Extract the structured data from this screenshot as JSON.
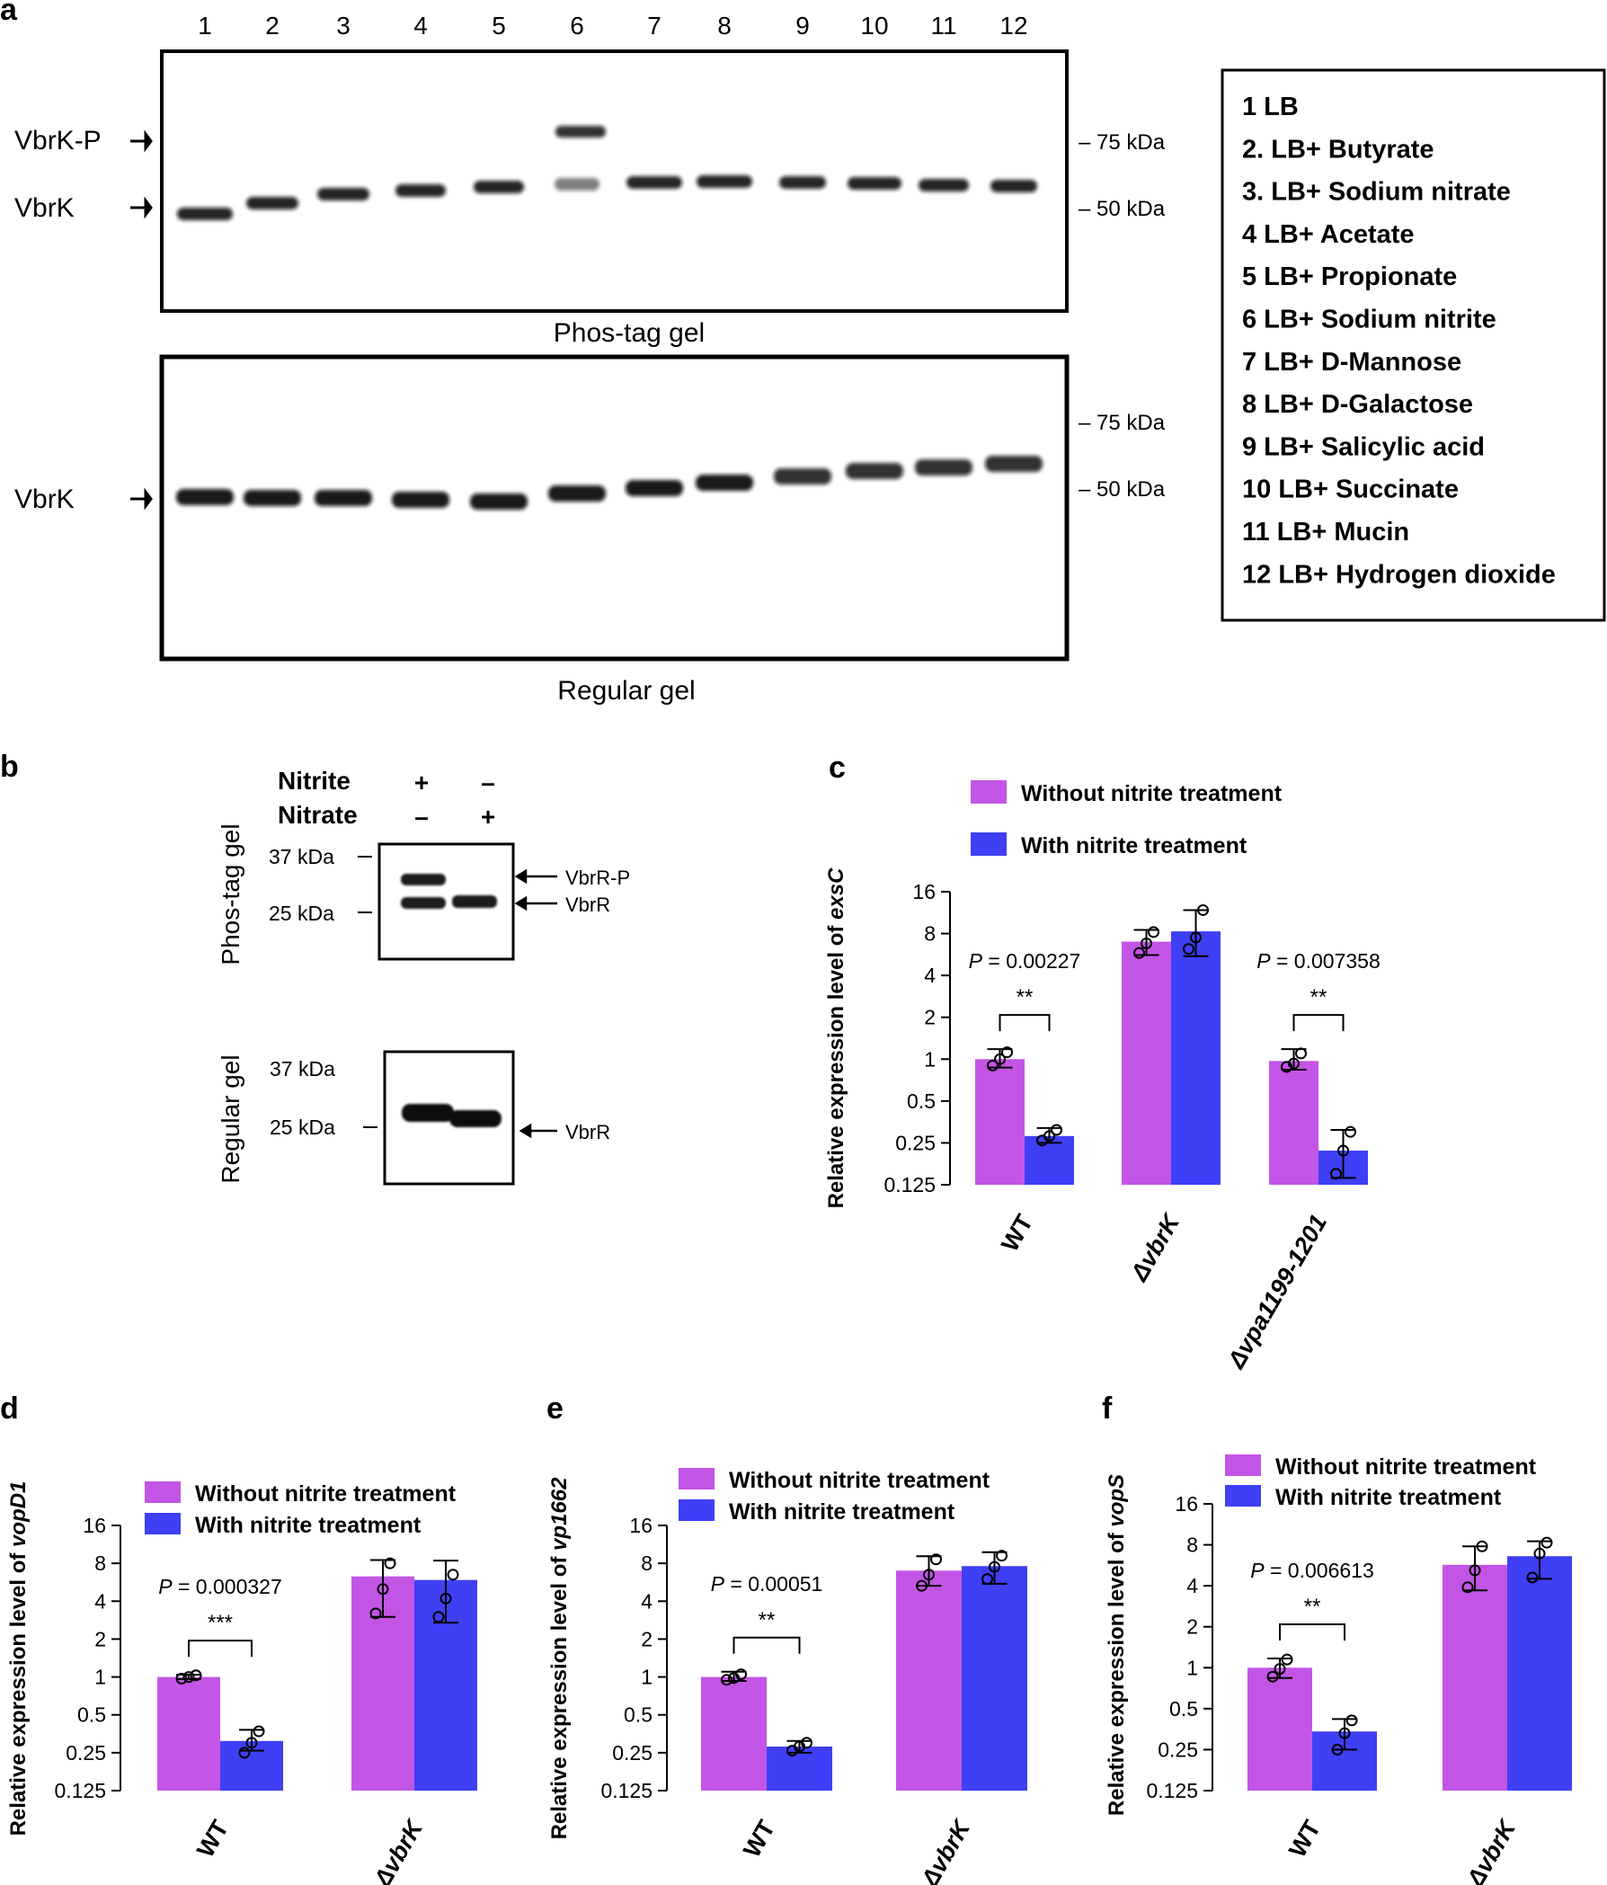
{
  "panel_labels": {
    "a": "a",
    "b": "b",
    "c": "c",
    "d": "d",
    "e": "e",
    "f": "f"
  },
  "panel_a": {
    "lanes": [
      "1",
      "2",
      "3",
      "4",
      "5",
      "6",
      "7",
      "8",
      "9",
      "10",
      "11",
      "12"
    ],
    "phos_label": "Phos-tag gel",
    "regular_label": "Regular gel",
    "left_labels": {
      "vbrk_p": "VbrK-P",
      "vbrk": "VbrK",
      "vbrk_regular": "VbrK"
    },
    "markers": {
      "kda75": "– 75 kDa",
      "kda50": "– 50 kDa"
    },
    "legend": [
      "1  LB",
      "2. LB+ Butyrate",
      "3. LB+ Sodium nitrate",
      "4  LB+ Acetate",
      "5  LB+ Propionate",
      "6  LB+ Sodium nitrite",
      "7  LB+ D-Mannose",
      "8  LB+ D-Galactose",
      "9  LB+ Salicylic acid",
      "10 LB+ Succinate",
      "11 LB+ Mucin",
      "12 LB+ Hydrogen dioxide"
    ]
  },
  "panel_b": {
    "nitrite_label": "Nitrite",
    "nitrate_label": "Nitrate",
    "nitrite_signs": [
      "+",
      "–"
    ],
    "nitrate_signs": [
      "–",
      "+"
    ],
    "phos_label": "Phos-tag gel",
    "regular_label": "Regular gel",
    "kda37": "37 kDa",
    "kda25": "25 kDa",
    "vbrr_p": "VbrR-P",
    "vbrr": "VbrR",
    "vbrr_regular": "VbrR"
  },
  "legend_text": {
    "without": "Without nitrite treatment",
    "with": "With nitrite treatment"
  },
  "colors": {
    "without": "#c355e6",
    "with": "#3f3ff5"
  },
  "chart_data": [
    {
      "id": "c",
      "type": "bar",
      "ylabel_prefix": "Relative expression level of ",
      "ylabel_gene": "exsC",
      "categories": [
        "WT",
        "ΔvbrK",
        "Δvpa1199-1201"
      ],
      "series": [
        {
          "name": "Without nitrite treatment",
          "values": [
            1.0,
            7.0,
            0.97
          ],
          "errors": [
            [
              0.87,
              1.18
            ],
            [
              5.6,
              8.5
            ],
            [
              0.84,
              1.18
            ]
          ],
          "points": [
            [
              0.9,
              1.0,
              1.12
            ],
            [
              5.8,
              6.8,
              8.2
            ],
            [
              0.88,
              0.93,
              1.1
            ]
          ]
        },
        {
          "name": "With nitrite treatment",
          "values": [
            0.28,
            8.3,
            0.22
          ],
          "errors": [
            [
              0.25,
              0.32
            ],
            [
              5.5,
              11.8
            ],
            [
              0.14,
              0.31
            ]
          ],
          "points": [
            [
              0.26,
              0.28,
              0.31
            ],
            [
              6.2,
              7.5,
              11.8
            ],
            [
              0.15,
              0.22,
              0.3
            ]
          ]
        }
      ],
      "yscale": "log2",
      "ylim": [
        0.125,
        16
      ],
      "yticks": [
        "16",
        "8",
        "4",
        "2",
        "1",
        "0.5",
        "0.25",
        "0.125"
      ],
      "annotations": [
        {
          "pvalue": "P = 0.00227",
          "stars": "**",
          "category": 0
        },
        {
          "pvalue": "P = 0.007358",
          "stars": "**",
          "category": 2
        }
      ]
    },
    {
      "id": "d",
      "type": "bar",
      "ylabel_prefix": "Relative expression level of ",
      "ylabel_gene": "vopD1",
      "categories": [
        "WT",
        "ΔvbrK"
      ],
      "series": [
        {
          "name": "Without nitrite treatment",
          "values": [
            1.0,
            6.3
          ],
          "errors": [
            [
              0.96,
              1.04
            ],
            [
              3.0,
              8.5
            ]
          ],
          "points": [
            [
              0.97,
              1.0,
              1.03
            ],
            [
              3.2,
              5.0,
              8.0
            ]
          ]
        },
        {
          "name": "With nitrite treatment",
          "values": [
            0.31,
            5.9
          ],
          "errors": [
            [
              0.26,
              0.38
            ],
            [
              2.7,
              8.4
            ]
          ],
          "points": [
            [
              0.25,
              0.3,
              0.37
            ],
            [
              3.0,
              4.2,
              6.5
            ]
          ]
        }
      ],
      "yscale": "log2",
      "ylim": [
        0.125,
        16
      ],
      "yticks": [
        "16",
        "8",
        "4",
        "2",
        "1",
        "0.5",
        "0.25",
        "0.125"
      ],
      "annotations": [
        {
          "pvalue": "P = 0.000327",
          "stars": "***",
          "category": 0
        }
      ]
    },
    {
      "id": "e",
      "type": "bar",
      "ylabel_prefix": "Relative expression level of ",
      "ylabel_gene": "vp1662",
      "categories": [
        "WT",
        "ΔvbrK"
      ],
      "series": [
        {
          "name": "Without nitrite treatment",
          "values": [
            1.0,
            7.0
          ],
          "errors": [
            [
              0.93,
              1.1
            ],
            [
              5.3,
              9.1
            ]
          ],
          "points": [
            [
              0.95,
              0.98,
              1.05
            ],
            [
              5.3,
              6.5,
              8.6
            ]
          ]
        },
        {
          "name": "With nitrite treatment",
          "values": [
            0.28,
            7.6
          ],
          "errors": [
            [
              0.25,
              0.31
            ],
            [
              5.5,
              9.8
            ]
          ],
          "points": [
            [
              0.26,
              0.28,
              0.3
            ],
            [
              6.0,
              7.5,
              9.2
            ]
          ]
        }
      ],
      "yscale": "log2",
      "ylim": [
        0.125,
        16
      ],
      "yticks": [
        "16",
        "8",
        "4",
        "2",
        "1",
        "0.5",
        "0.25",
        "0.125"
      ],
      "annotations": [
        {
          "pvalue": "P = 0.00051",
          "stars": "**",
          "category": 0
        }
      ]
    },
    {
      "id": "f",
      "type": "bar",
      "ylabel_prefix": "Relative expression level of ",
      "ylabel_gene": "vopS",
      "categories": [
        "WT",
        "ΔvbrK"
      ],
      "series": [
        {
          "name": "Without nitrite treatment",
          "values": [
            1.0,
            5.7
          ],
          "errors": [
            [
              0.84,
              1.17
            ],
            [
              3.7,
              7.8
            ]
          ],
          "points": [
            [
              0.86,
              0.98,
              1.15
            ],
            [
              3.9,
              5.2,
              7.8
            ]
          ]
        },
        {
          "name": "With nitrite treatment",
          "values": [
            0.34,
            6.6
          ],
          "errors": [
            [
              0.25,
              0.42
            ],
            [
              4.5,
              8.5
            ]
          ],
          "points": [
            [
              0.25,
              0.33,
              0.41
            ],
            [
              4.6,
              6.9,
              8.3
            ]
          ]
        }
      ],
      "yscale": "log2",
      "ylim": [
        0.125,
        16
      ],
      "yticks": [
        "16",
        "8",
        "4",
        "2",
        "1",
        "0.5",
        "0.25",
        "0.125"
      ],
      "annotations": [
        {
          "pvalue": "P = 0.006613",
          "stars": "**",
          "category": 0
        }
      ]
    }
  ]
}
